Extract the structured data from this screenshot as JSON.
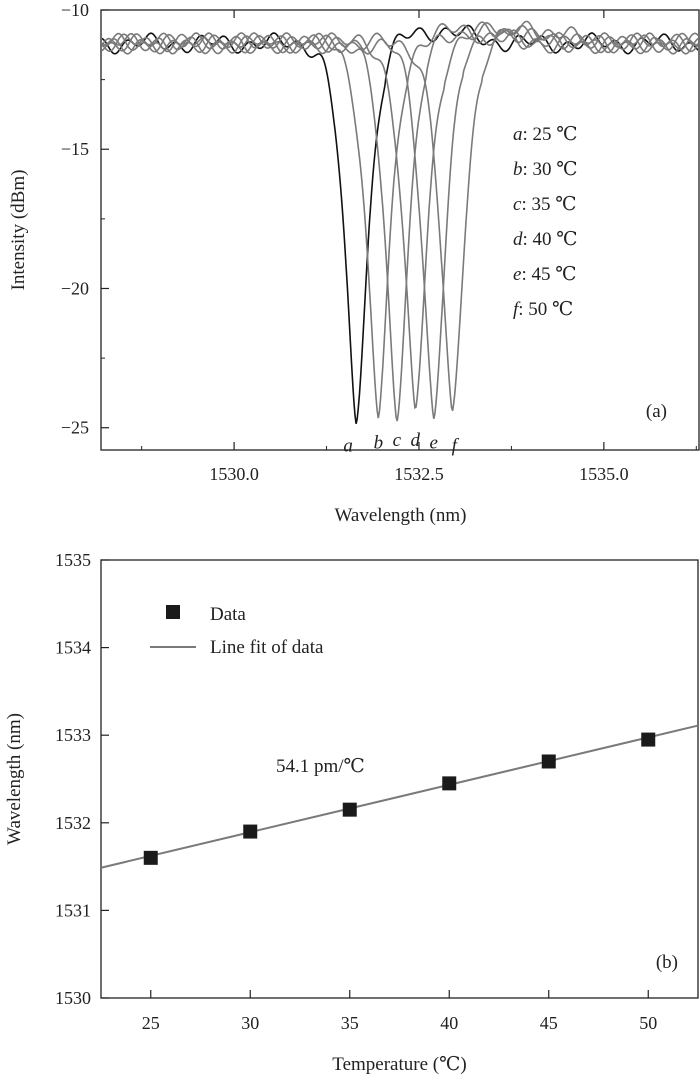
{
  "chart_data": [
    {
      "panel": "(a)",
      "type": "line",
      "xlabel": "Wavelength (nm)",
      "ylabel": "Intensity (dBm)",
      "xlim": [
        1528.2,
        1536.3
      ],
      "ylim": [
        -25.8,
        -10
      ],
      "xticks": [
        1530.0,
        1532.5,
        1535.0
      ],
      "xtick_labels": [
        "1530.0",
        "1532.5",
        "1535.0"
      ],
      "yticks": [
        -10,
        -15,
        -20,
        -25
      ],
      "ytick_labels": [
        "−10",
        "−15",
        "−20",
        "−25"
      ],
      "baseline_dBm": -11.2,
      "series": [
        {
          "name": "a",
          "label": "a: 25 ℃",
          "temperature_C": 25,
          "dip_wavelength_nm": 1531.65,
          "dip_intensity_dBm": -24.7,
          "color": "#111111"
        },
        {
          "name": "b",
          "label": "b: 30 ℃",
          "temperature_C": 30,
          "dip_wavelength_nm": 1531.95,
          "dip_intensity_dBm": -24.6,
          "color": "#7a7a7a"
        },
        {
          "name": "c",
          "label": "c: 35 ℃",
          "temperature_C": 35,
          "dip_wavelength_nm": 1532.2,
          "dip_intensity_dBm": -24.5,
          "color": "#7a7a7a"
        },
        {
          "name": "d",
          "label": "d: 40 ℃",
          "temperature_C": 40,
          "dip_wavelength_nm": 1532.45,
          "dip_intensity_dBm": -24.5,
          "color": "#7a7a7a"
        },
        {
          "name": "e",
          "label": "e: 45 ℃",
          "temperature_C": 45,
          "dip_wavelength_nm": 1532.7,
          "dip_intensity_dBm": -24.6,
          "color": "#7a7a7a"
        },
        {
          "name": "f",
          "label": "f: 50 ℃",
          "temperature_C": 50,
          "dip_wavelength_nm": 1532.95,
          "dip_intensity_dBm": -24.7,
          "color": "#7a7a7a"
        }
      ],
      "curve_letters": [
        "a",
        "b",
        "c",
        "d",
        "e",
        "f"
      ],
      "legend_items": [
        {
          "letter": "a",
          "rest": ": 25 ℃"
        },
        {
          "letter": "b",
          "rest": ": 30 ℃"
        },
        {
          "letter": "c",
          "rest": ": 35 ℃"
        },
        {
          "letter": "d",
          "rest": ": 40 ℃"
        },
        {
          "letter": "e",
          "rest": ": 45 ℃"
        },
        {
          "letter": "f",
          "rest": ": 50 ℃"
        }
      ],
      "panel_label": "(a)",
      "legend_placement": "right"
    },
    {
      "panel": "(b)",
      "type": "scatter",
      "xlabel": "Temperature (℃)",
      "ylabel": "Wavelength (nm)",
      "xlim": [
        22.5,
        52.5
      ],
      "ylim": [
        1530,
        1535
      ],
      "xticks": [
        25,
        30,
        35,
        40,
        45,
        50
      ],
      "xtick_labels": [
        "25",
        "30",
        "35",
        "40",
        "45",
        "50"
      ],
      "yticks": [
        1530,
        1531,
        1532,
        1533,
        1534,
        1535
      ],
      "ytick_labels": [
        "1530",
        "1531",
        "1532",
        "1533",
        "1534",
        "1535"
      ],
      "series": [
        {
          "name": "Data",
          "x": [
            25,
            30,
            35,
            40,
            45,
            50
          ],
          "y": [
            1531.6,
            1531.9,
            1532.15,
            1532.45,
            1532.7,
            1532.95
          ],
          "color": "#1a1a1a"
        },
        {
          "name": "Line fit of data",
          "fit": {
            "slope": 0.0541,
            "intercept": 1530.27
          },
          "color": "#7a7a7a"
        }
      ],
      "annotation": "54.1 pm/℃",
      "panel_label": "(b)",
      "legend_placement": "top-left"
    }
  ]
}
